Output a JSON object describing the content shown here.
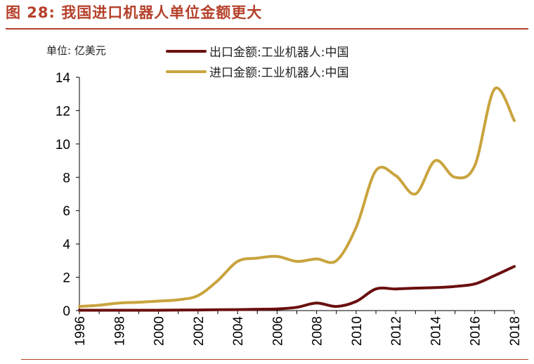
{
  "figure": {
    "title": "图 28:  我国进口机器人单位金额更大",
    "unit_label": "单位: 亿美元"
  },
  "colors": {
    "title": "#b5402a",
    "export_series": "#6b0f0f",
    "import_series": "#c9a43e"
  },
  "chart_data": {
    "type": "line",
    "x": [
      1996,
      1997,
      1998,
      1999,
      2000,
      2001,
      2002,
      2003,
      2004,
      2005,
      2006,
      2007,
      2008,
      2009,
      2010,
      2011,
      2012,
      2013,
      2014,
      2015,
      2016,
      2017,
      2018
    ],
    "series": [
      {
        "name": "出口金额:工业机器人:中国",
        "color": "#6b0f0f",
        "values": [
          0.02,
          0.02,
          0.02,
          0.02,
          0.02,
          0.03,
          0.04,
          0.05,
          0.06,
          0.08,
          0.1,
          0.2,
          0.45,
          0.25,
          0.55,
          1.3,
          1.3,
          1.35,
          1.38,
          1.45,
          1.6,
          2.1,
          2.65
        ]
      },
      {
        "name": "进口金额:工业机器人:中国",
        "color": "#c9a43e",
        "values": [
          0.25,
          0.32,
          0.45,
          0.5,
          0.57,
          0.65,
          0.9,
          1.8,
          2.95,
          3.15,
          3.25,
          2.95,
          3.1,
          3.0,
          5.0,
          8.4,
          8.1,
          7.0,
          9.0,
          8.0,
          8.7,
          13.3,
          11.4
        ]
      }
    ],
    "xlim": [
      1996,
      2018
    ],
    "ylim": [
      0,
      14
    ],
    "yticks": [
      0,
      2,
      4,
      6,
      8,
      10,
      12,
      14
    ],
    "xticks": [
      1996,
      1998,
      2000,
      2002,
      2004,
      2006,
      2008,
      2010,
      2012,
      2014,
      2016,
      2018
    ],
    "grid": false,
    "legend_position": "top"
  }
}
